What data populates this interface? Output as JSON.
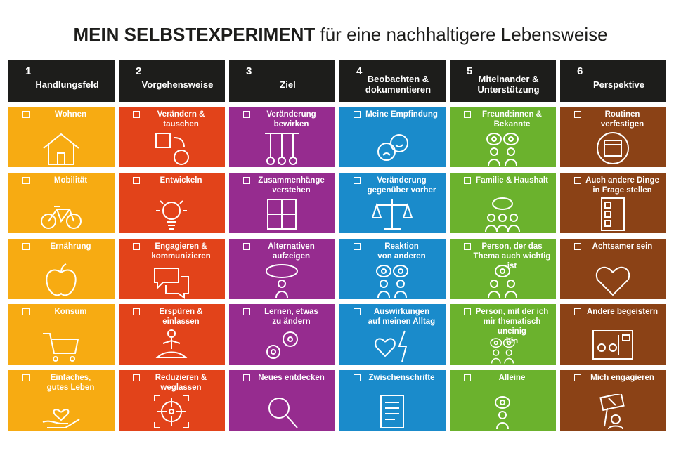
{
  "title": {
    "bold": "MEIN SELBSTEXPERIMENT",
    "rest": "für eine nachhaltigere Lebensweise"
  },
  "columns": [
    {
      "number": "1",
      "label": "Handlungsfeld",
      "color": "#f7ab12",
      "items": [
        "Wohnen",
        "Mobilität",
        "Ernährung",
        "Konsum",
        "Einfaches,\ngutes Leben"
      ]
    },
    {
      "number": "2",
      "label": "Vorgehensweise",
      "color": "#e2431a",
      "items": [
        "Verändern &\ntauschen",
        "Entwickeln",
        "Engagieren &\nkommunizieren",
        "Erspüren &\neinlassen",
        "Reduzieren &\nweglassen"
      ]
    },
    {
      "number": "3",
      "label": "Ziel",
      "color": "#962c8f",
      "items": [
        "Veränderung\nbewirken",
        "Zusammenhänge\nverstehen",
        "Alternativen\naufzeigen",
        "Lernen, etwas\nzu ändern",
        "Neues entdecken"
      ]
    },
    {
      "number": "4",
      "label": "Beobachten &\ndokumentieren",
      "color": "#1a8bcb",
      "items": [
        "Meine Empfindung",
        "Veränderung\ngegenüber vorher",
        "Reaktion\nvon anderen",
        "Auswirkungen\nauf meinen Alltag",
        "Zwischenschritte"
      ]
    },
    {
      "number": "5",
      "label": "Miteinander &\nUnterstützung",
      "color": "#6bb22d",
      "items": [
        "Freund:innen &\nBekannte",
        "Familie & Haushalt",
        "Person, der das\nThema auch wichtig ist",
        "Person, mit der ich\nmir thematisch uneinig\nbin",
        "Alleine"
      ]
    },
    {
      "number": "6",
      "label": "Perspektive",
      "color": "#8b4216",
      "items": [
        "Routinen verfestigen",
        "Auch andere Dinge\nin Frage stellen",
        "Achtsamer sein",
        "Andere begeistern",
        "Mich engagieren"
      ]
    }
  ]
}
